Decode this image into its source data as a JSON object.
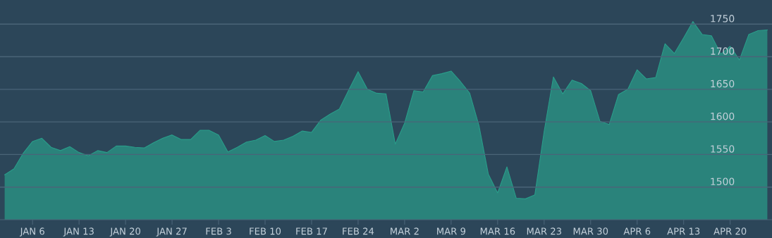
{
  "chart_data": {
    "type": "area",
    "categories": [
      null,
      null,
      null,
      "JAN 6",
      null,
      null,
      null,
      null,
      "JAN 13",
      null,
      null,
      null,
      null,
      "JAN 20",
      null,
      null,
      null,
      null,
      "JAN 27",
      null,
      null,
      null,
      null,
      "FEB 3",
      null,
      null,
      null,
      null,
      "FEB 10",
      null,
      null,
      null,
      null,
      "FEB 17",
      null,
      null,
      null,
      null,
      "FEB 24",
      null,
      null,
      null,
      null,
      "MAR 2",
      null,
      null,
      null,
      null,
      "MAR 9",
      null,
      null,
      null,
      null,
      "MAR 16",
      null,
      null,
      null,
      null,
      "MAR 23",
      null,
      null,
      null,
      null,
      "MAR 30",
      null,
      null,
      null,
      null,
      "APR 6",
      null,
      null,
      null,
      null,
      "APR 13",
      null,
      null,
      null,
      null,
      "APR 20",
      null,
      null,
      null,
      null
    ],
    "series": [
      {
        "color": "#2a9d8a",
        "values": [
          1519,
          1528,
          1552,
          1570,
          1575,
          1561,
          1556,
          1562,
          1553,
          1548,
          1556,
          1553,
          1563,
          1563,
          1561,
          1560,
          1568,
          1575,
          1580,
          1573,
          1573,
          1587,
          1587,
          1580,
          1554,
          1561,
          1569,
          1572,
          1579,
          1570,
          1572,
          1578,
          1586,
          1584,
          1603,
          1612,
          1620,
          1649,
          1677,
          1650,
          1644,
          1643,
          1566,
          1598,
          1648,
          1646,
          1671,
          1674,
          1678,
          1662,
          1644,
          1594,
          1520,
          1491,
          1531,
          1483,
          1482,
          1488,
          1585,
          1669,
          1643,
          1664,
          1659,
          1648,
          1601,
          1596,
          1642,
          1650,
          1680,
          1666,
          1668,
          1720,
          1705,
          1729,
          1754,
          1734,
          1732,
          1704,
          1716,
          1695,
          1734,
          1740,
          1741
        ]
      }
    ],
    "ylim": [
      1450,
      1787
    ],
    "yticks": [
      1500,
      1550,
      1600,
      1650,
      1700,
      1750
    ],
    "grid": "y"
  }
}
